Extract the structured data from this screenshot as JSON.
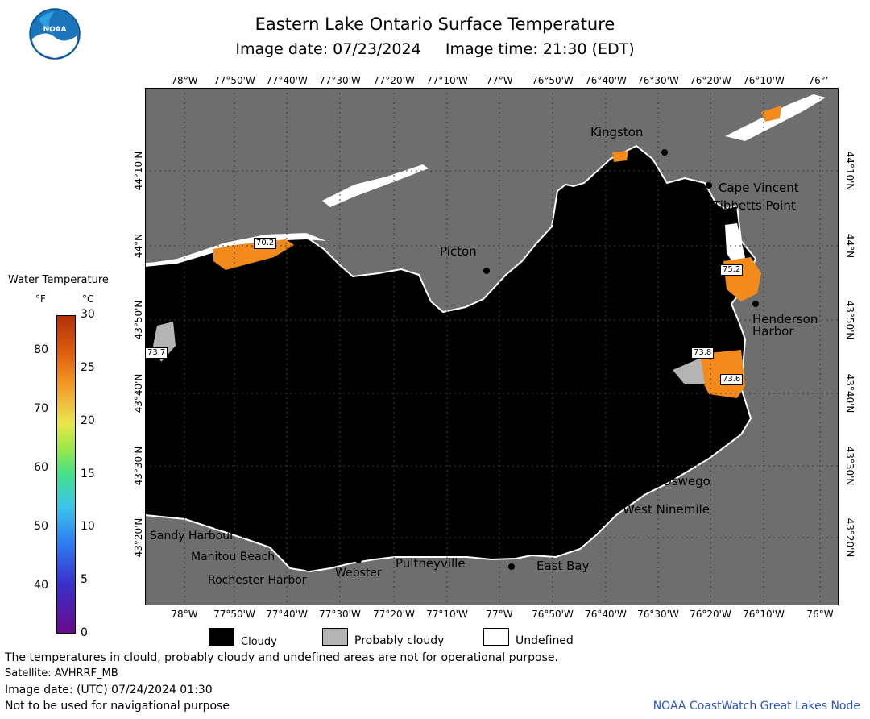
{
  "header": {
    "title": "Eastern Lake Ontario Surface Temperature",
    "subtitle": "Image date: 07/23/2024     Image time: 21:30 (EDT)",
    "logo_text": "NOAA"
  },
  "map": {
    "lon_labels": [
      "78°W",
      "77°50'W",
      "77°40'W",
      "77°30'W",
      "77°20'W",
      "77°10'W",
      "77°W",
      "76°50'W",
      "76°40'W",
      "76°30'W",
      "76°20'W",
      "76°10'W",
      "76°W"
    ],
    "lon_labels_top": [
      "78°W",
      "77°50'W",
      "77°40'W",
      "77°30'W",
      "77°20'W",
      "77°10'W",
      "77°W",
      "76°50'W",
      "76°40'W",
      "76°30'W",
      "76°20'W",
      "76°10'W",
      "76°ʼ"
    ],
    "lat_labels": [
      "44°10'N",
      "44°N",
      "43°50'N",
      "43°40'N",
      "43°30'N",
      "43°20'N"
    ],
    "places": [
      {
        "name": "Kingston"
      },
      {
        "name": "Cape Vincent"
      },
      {
        "name": "Tibbetts Point"
      },
      {
        "name": "Picton"
      },
      {
        "name": "Henderson"
      },
      {
        "name": "Harbor"
      },
      {
        "name": "Oswego"
      },
      {
        "name": "West Ninemile"
      },
      {
        "name": "Sandy Harbour"
      },
      {
        "name": "Manitou Beach"
      },
      {
        "name": "Rochester Harbor"
      },
      {
        "name": "Webster"
      },
      {
        "name": "Pultneyville"
      },
      {
        "name": "East Bay"
      }
    ],
    "temperature_labels": [
      "70.2",
      "75.2",
      "73.7",
      "73.8",
      "73.6"
    ],
    "colors": {
      "land": "#6e6e6e",
      "cloudy": "#000000",
      "probably_cloudy": "#b4b4b4",
      "undefined": "#ffffff",
      "warm_water": "#f28a1c"
    }
  },
  "legend": {
    "title": "Water Temperature",
    "unit_f": "°F",
    "unit_c": "°C",
    "f_ticks": [
      "80",
      "70",
      "60",
      "50",
      "40"
    ],
    "f_values": [
      80,
      70,
      60,
      50,
      40
    ],
    "c_ticks": [
      "30",
      "25",
      "20",
      "15",
      "10",
      "5",
      "0"
    ],
    "c_values": [
      30,
      25,
      20,
      15,
      10,
      5,
      0
    ],
    "c_range": [
      0,
      30
    ]
  },
  "key": {
    "cloudy": "Cloudy",
    "probably_cloudy": "Probably cloudy",
    "undefined": "Undefined"
  },
  "footer": {
    "line1": "The temperatures in clould, probably cloudy and undefined areas are not for operational purpose.",
    "line2": "Satellite: AVHRRF_MB",
    "line3": "Image date: (UTC) 07/24/2024  01:30",
    "line4": "Not to be used for navigational purpose",
    "credit": "NOAA CoastWatch Great Lakes Node"
  }
}
